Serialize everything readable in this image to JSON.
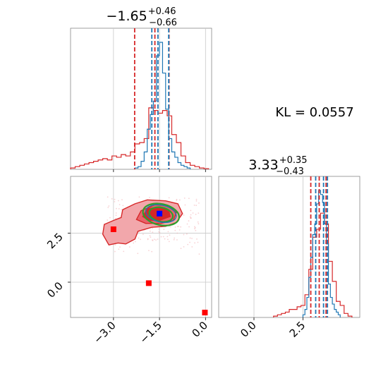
{
  "chart_data": [
    {
      "type": "histogram",
      "panel": "marginal-param-1",
      "title": {
        "median": "−1.65",
        "plus": "+0.46",
        "minus": "−0.66"
      },
      "xlim": [
        -4.4,
        0.2
      ],
      "x_ticks": [
        -3.0,
        -1.5,
        0.0
      ],
      "grid": true,
      "series": [
        {
          "color": "#d62728",
          "bin_edges": [
            -4.4,
            -4.25,
            -4.1,
            -3.95,
            -3.8,
            -3.65,
            -3.5,
            -3.35,
            -3.2,
            -3.05,
            -2.9,
            -2.75,
            -2.6,
            -2.45,
            -2.3,
            -2.15,
            -2.0,
            -1.85,
            -1.7,
            -1.55,
            -1.4,
            -1.25,
            -1.1,
            -0.95,
            -0.8,
            -0.65,
            -0.5,
            -0.35,
            -0.2,
            -0.05,
            0.1
          ],
          "density": [
            0.01,
            0.02,
            0.03,
            0.04,
            0.05,
            0.06,
            0.07,
            0.08,
            0.07,
            0.1,
            0.09,
            0.11,
            0.1,
            0.13,
            0.19,
            0.2,
            0.23,
            0.46,
            0.44,
            0.42,
            0.44,
            0.4,
            0.26,
            0.2,
            0.1,
            0.05,
            0.03,
            0.02,
            0.01,
            0.005
          ],
          "quantiles": [
            -2.31,
            -1.65,
            -1.19
          ]
        },
        {
          "color": "#1f77b4",
          "bin_edges": [
            -2.3,
            -2.2,
            -2.1,
            -2.0,
            -1.9,
            -1.8,
            -1.7,
            -1.6,
            -1.5,
            -1.4,
            -1.3,
            -1.2,
            -1.1,
            -1.0,
            -0.9,
            -0.8,
            -0.7,
            -0.6,
            -0.5
          ],
          "density": [
            0.01,
            0.02,
            0.06,
            0.13,
            0.3,
            0.41,
            0.51,
            0.85,
            0.95,
            0.72,
            0.45,
            0.23,
            0.13,
            0.09,
            0.05,
            0.03,
            0.02,
            0.01
          ],
          "quantiles": [
            -1.75,
            -1.55,
            -1.2
          ]
        }
      ]
    },
    {
      "type": "histogram",
      "panel": "marginal-param-2",
      "title": {
        "median": "3.33",
        "plus": "+0.35",
        "minus": "−0.43"
      },
      "xlim": [
        -1.8,
        5.4
      ],
      "x_ticks": [
        0.0,
        2.5
      ],
      "grid": true,
      "series": [
        {
          "color": "#d62728",
          "bin_edges": [
            1.0,
            1.2,
            1.4,
            1.6,
            1.8,
            2.0,
            2.2,
            2.4,
            2.6,
            2.8,
            3.0,
            3.2,
            3.4,
            3.6,
            3.8,
            4.0,
            4.2,
            4.4,
            4.6,
            4.8,
            5.0
          ],
          "density": [
            0.01,
            0.02,
            0.03,
            0.04,
            0.06,
            0.06,
            0.08,
            0.09,
            0.17,
            0.36,
            0.6,
            0.66,
            0.78,
            0.7,
            0.42,
            0.27,
            0.12,
            0.09,
            0.03,
            0.01
          ],
          "quantiles": [
            2.9,
            3.33,
            3.68
          ]
        },
        {
          "color": "#1f77b4",
          "bin_edges": [
            2.5,
            2.6,
            2.7,
            2.8,
            2.9,
            3.0,
            3.1,
            3.2,
            3.3,
            3.4,
            3.5,
            3.6,
            3.7,
            3.8,
            3.9,
            4.0,
            4.1,
            4.2,
            4.3,
            4.4
          ],
          "density": [
            0.02,
            0.06,
            0.15,
            0.3,
            0.45,
            0.62,
            0.7,
            0.85,
            0.95,
            0.92,
            0.86,
            0.7,
            0.55,
            0.25,
            0.15,
            0.1,
            0.06,
            0.04,
            0.02
          ],
          "quantiles": [
            3.15,
            3.55,
            3.75
          ]
        }
      ]
    },
    {
      "type": "scatter",
      "panel": "joint-2d",
      "xlim": [
        -4.4,
        0.2
      ],
      "ylim": [
        -1.8,
        5.4
      ],
      "x_ticks": [
        -3.0,
        -1.5,
        0.0
      ],
      "y_ticks": [
        0.0,
        2.5
      ],
      "grid": true,
      "contours": [
        {
          "color": "#d62728",
          "level": "outer",
          "filled": true,
          "fill": "#f2a7ab"
        },
        {
          "color": "#d62728",
          "level": "inner",
          "filled": true,
          "fill": "#d62728"
        },
        {
          "color": "#1f77b4",
          "level": "core",
          "filled": false
        },
        {
          "color": "#2ca02c",
          "level": "ring",
          "filled": false
        }
      ],
      "markers": [
        {
          "x": -3.0,
          "y": 2.7,
          "color": "#ff0000",
          "shape": "square"
        },
        {
          "x": -1.85,
          "y": -0.05,
          "color": "#ff0000",
          "shape": "square"
        },
        {
          "x": -0.02,
          "y": -1.55,
          "color": "#ff0000",
          "shape": "square"
        },
        {
          "x": -1.5,
          "y": 3.5,
          "color": "#0000ff",
          "shape": "square"
        }
      ]
    }
  ],
  "annotation": {
    "kl_text": "KL = 0.0557"
  }
}
